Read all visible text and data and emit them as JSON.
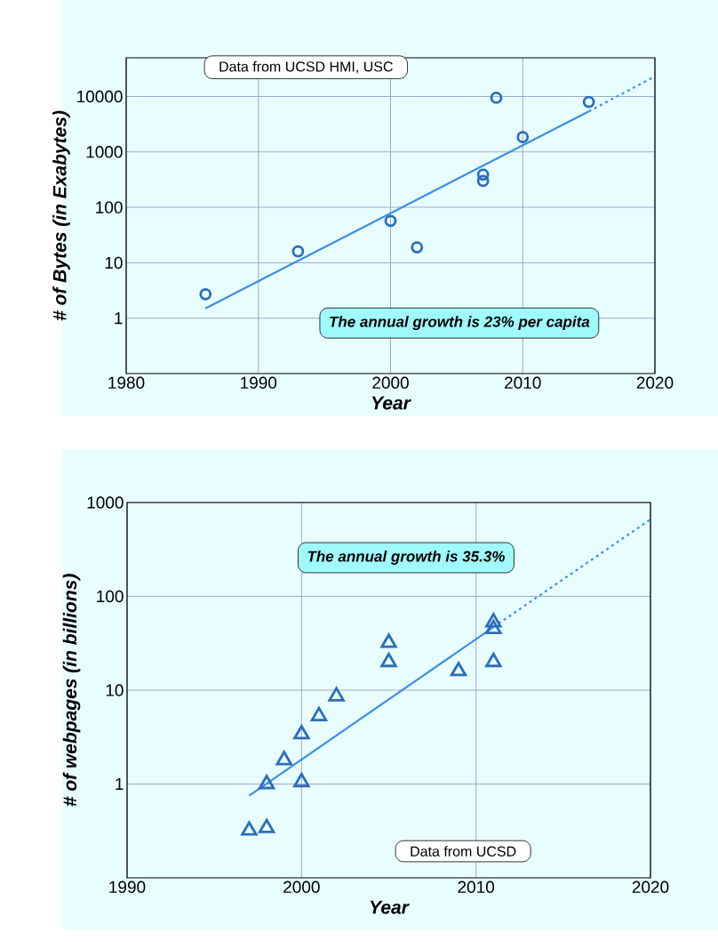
{
  "chart_data": [
    {
      "type": "scatter",
      "xlabel": "Year",
      "ylabel": "# of Bytes (in Exabytes)",
      "log": "y",
      "xlim": [
        1980,
        2020
      ],
      "ylim": [
        0.1,
        50000
      ],
      "xticks": [
        1980,
        1990,
        2000,
        2010,
        2020
      ],
      "yticks": [
        1,
        10,
        100,
        1000,
        10000
      ],
      "grid": true,
      "marker": "circle",
      "annotations": [
        "Data from UCSD HMI, USC",
        "The annual growth is 23% per capita"
      ],
      "series": [
        {
          "color": "#2a6ebb",
          "x": [
            1986,
            1993,
            2000,
            2002,
            2007,
            2007,
            2008,
            2010,
            2015
          ],
          "values": [
            2.7,
            16,
            57,
            19,
            390,
            300,
            9500,
            1850,
            8000
          ]
        },
        {
          "type": "line",
          "color": "#3a8ee6",
          "marker": "none",
          "line_style": "solid",
          "x": [
            1986,
            2015
          ],
          "values": [
            1.5,
            5400
          ]
        },
        {
          "type": "line",
          "color": "#3a8ee6",
          "marker": "none",
          "line_style": "dotted",
          "x": [
            2015,
            2020
          ],
          "values": [
            5400,
            23000
          ]
        }
      ]
    },
    {
      "type": "scatter",
      "xlabel": "Year",
      "ylabel": "# of webpages (in billions)",
      "log": "y",
      "xlim": [
        1990,
        2020
      ],
      "ylim": [
        0.1,
        1000
      ],
      "xticks": [
        1990,
        2000,
        2010,
        2020
      ],
      "yticks": [
        1,
        10,
        100,
        1000
      ],
      "grid": true,
      "marker": "triangle",
      "annotations": [
        "The annual growth is 35.3%",
        "Data from UCSD"
      ],
      "series": [
        {
          "color": "#2a6ebb",
          "x": [
            1997,
            1998,
            1998,
            1999,
            2000,
            2000,
            2001,
            2002,
            2005,
            2005,
            2009,
            2011,
            2011,
            2011
          ],
          "values": [
            0.32,
            0.34,
            1.0,
            1.8,
            3.4,
            1.05,
            5.3,
            8.6,
            32,
            20,
            16,
            53,
            45,
            20
          ]
        },
        {
          "type": "line",
          "color": "#3a8ee6",
          "marker": "none",
          "line_style": "solid",
          "x": [
            1997,
            2011
          ],
          "values": [
            0.75,
            47
          ]
        },
        {
          "type": "line",
          "color": "#3a8ee6",
          "marker": "none",
          "line_style": "dotted",
          "x": [
            2011,
            2020
          ],
          "values": [
            47,
            660
          ]
        }
      ]
    }
  ]
}
